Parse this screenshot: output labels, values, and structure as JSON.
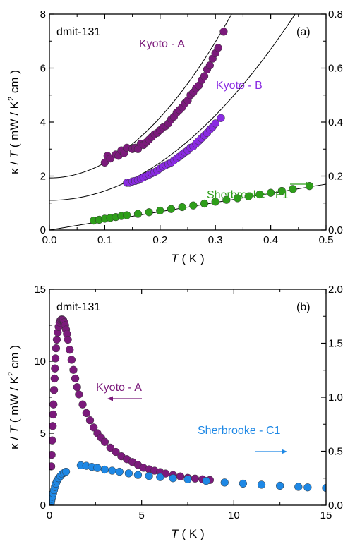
{
  "chart_data": [
    {
      "id": "a",
      "type": "scatter",
      "panel_label": "(a)",
      "sample_label": "dmit-131",
      "xlabel": {
        "var": "T",
        "unit": "( K )"
      },
      "ylabel": {
        "pre": "κ / ",
        "var": "T",
        "unit_pre": " ( mW / K",
        "sup": "2",
        "unit_post": " cm )"
      },
      "xlim": [
        0.0,
        0.5
      ],
      "ylim": [
        0,
        8
      ],
      "y2lim": [
        0.0,
        0.8
      ],
      "xticks": [
        "0.0",
        "0.1",
        "0.2",
        "0.3",
        "0.4",
        "0.5"
      ],
      "yticks": [
        "0",
        "2",
        "4",
        "6",
        "8"
      ],
      "y2ticks": [
        "0.0",
        "0.2",
        "0.4",
        "0.6",
        "0.8"
      ],
      "colors": {
        "kyoto_a": "#7b1a7b",
        "kyoto_b": "#8a2be2",
        "sherbrooke_f1": "#2e9e1a"
      },
      "series": [
        {
          "name": "Kyoto - A",
          "color": "#7b1a7b",
          "axis": "left",
          "points": [
            [
              0.1,
              2.5
            ],
            [
              0.105,
              2.75
            ],
            [
              0.11,
              2.65
            ],
            [
              0.12,
              2.8
            ],
            [
              0.125,
              2.75
            ],
            [
              0.13,
              2.95
            ],
            [
              0.135,
              2.85
            ],
            [
              0.14,
              3.05
            ],
            [
              0.15,
              3.0
            ],
            [
              0.155,
              3.05
            ],
            [
              0.16,
              3.0
            ],
            [
              0.165,
              3.2
            ],
            [
              0.17,
              3.15
            ],
            [
              0.175,
              3.25
            ],
            [
              0.18,
              3.35
            ],
            [
              0.185,
              3.45
            ],
            [
              0.19,
              3.55
            ],
            [
              0.195,
              3.6
            ],
            [
              0.2,
              3.7
            ],
            [
              0.205,
              3.8
            ],
            [
              0.21,
              3.85
            ],
            [
              0.215,
              3.95
            ],
            [
              0.22,
              4.1
            ],
            [
              0.225,
              4.2
            ],
            [
              0.23,
              4.35
            ],
            [
              0.235,
              4.45
            ],
            [
              0.24,
              4.55
            ],
            [
              0.245,
              4.7
            ],
            [
              0.25,
              4.8
            ],
            [
              0.255,
              5.0
            ],
            [
              0.26,
              5.1
            ],
            [
              0.265,
              5.25
            ],
            [
              0.27,
              5.35
            ],
            [
              0.275,
              5.55
            ],
            [
              0.28,
              5.7
            ],
            [
              0.285,
              5.95
            ],
            [
              0.29,
              6.1
            ],
            [
              0.295,
              6.35
            ],
            [
              0.3,
              6.55
            ],
            [
              0.305,
              6.75
            ],
            [
              0.315,
              7.35
            ]
          ],
          "fit": {
            "a": 1.93,
            "b": 0.0,
            "c": 56.0
          }
        },
        {
          "name": "Kyoto - B",
          "color": "#8a2be2",
          "axis": "left",
          "points": [
            [
              0.14,
              1.75
            ],
            [
              0.145,
              1.75
            ],
            [
              0.15,
              1.8
            ],
            [
              0.155,
              1.82
            ],
            [
              0.16,
              1.85
            ],
            [
              0.165,
              1.9
            ],
            [
              0.17,
              1.95
            ],
            [
              0.175,
              2.0
            ],
            [
              0.18,
              2.05
            ],
            [
              0.185,
              2.1
            ],
            [
              0.19,
              2.15
            ],
            [
              0.195,
              2.2
            ],
            [
              0.2,
              2.28
            ],
            [
              0.205,
              2.35
            ],
            [
              0.21,
              2.4
            ],
            [
              0.215,
              2.45
            ],
            [
              0.22,
              2.5
            ],
            [
              0.225,
              2.58
            ],
            [
              0.23,
              2.65
            ],
            [
              0.235,
              2.72
            ],
            [
              0.24,
              2.8
            ],
            [
              0.245,
              2.88
            ],
            [
              0.25,
              2.95
            ],
            [
              0.255,
              3.05
            ],
            [
              0.26,
              3.1
            ],
            [
              0.265,
              3.2
            ],
            [
              0.27,
              3.3
            ],
            [
              0.275,
              3.4
            ],
            [
              0.28,
              3.5
            ],
            [
              0.285,
              3.6
            ],
            [
              0.29,
              3.72
            ],
            [
              0.295,
              3.82
            ],
            [
              0.3,
              3.95
            ],
            [
              0.31,
              4.15
            ]
          ],
          "fit": {
            "a": 1.1,
            "b": 0.0,
            "c": 35.0
          }
        },
        {
          "name": "Sherbrooke - F1",
          "color": "#2e9e1a",
          "axis": "right",
          "points": [
            [
              0.08,
              0.035
            ],
            [
              0.09,
              0.038
            ],
            [
              0.1,
              0.042
            ],
            [
              0.11,
              0.045
            ],
            [
              0.12,
              0.048
            ],
            [
              0.13,
              0.052
            ],
            [
              0.14,
              0.055
            ],
            [
              0.16,
              0.06
            ],
            [
              0.18,
              0.066
            ],
            [
              0.2,
              0.072
            ],
            [
              0.22,
              0.078
            ],
            [
              0.24,
              0.085
            ],
            [
              0.26,
              0.091
            ],
            [
              0.28,
              0.098
            ],
            [
              0.3,
              0.105
            ],
            [
              0.32,
              0.112
            ],
            [
              0.34,
              0.118
            ],
            [
              0.36,
              0.125
            ],
            [
              0.38,
              0.132
            ],
            [
              0.4,
              0.138
            ],
            [
              0.42,
              0.145
            ],
            [
              0.44,
              0.152
            ],
            [
              0.47,
              0.163
            ]
          ],
          "fit": {
            "a": 0.0,
            "b": 0.34,
            "c": 0.0,
            "scale": 0.1
          }
        }
      ],
      "annotations": [
        {
          "text": "Kyoto - A",
          "color": "#7b1a7b"
        },
        {
          "text": "Kyoto - B",
          "color": "#8a2be2"
        },
        {
          "text": "Sherbrooke - F1",
          "color": "#2e9e1a",
          "arrow": "right"
        }
      ]
    },
    {
      "id": "b",
      "type": "scatter",
      "panel_label": "(b)",
      "sample_label": "dmit-131",
      "xlabel": {
        "var": "T",
        "unit": "( K )"
      },
      "ylabel": {
        "pre": "κ / ",
        "var": "T",
        "unit_pre": " ( mW / K",
        "sup": "2",
        "unit_post": " cm )"
      },
      "xlim": [
        0,
        15
      ],
      "ylim": [
        0,
        15
      ],
      "y2lim": [
        0.0,
        2.0
      ],
      "xticks": [
        "0",
        "5",
        "10",
        "15"
      ],
      "yticks": [
        "0",
        "5",
        "10",
        "15"
      ],
      "y2ticks": [
        "0.0",
        "0.5",
        "1.0",
        "1.5",
        "2.0"
      ],
      "colors": {
        "kyoto_a": "#7b1a7b",
        "sherbrooke_c1": "#1e88e5"
      },
      "series": [
        {
          "name": "Kyoto - A",
          "color": "#7b1a7b",
          "axis": "left",
          "points": [
            [
              0.1,
              2.7
            ],
            [
              0.12,
              3.5
            ],
            [
              0.15,
              4.5
            ],
            [
              0.18,
              5.5
            ],
            [
              0.2,
              6.3
            ],
            [
              0.22,
              7.0
            ],
            [
              0.25,
              8.0
            ],
            [
              0.28,
              8.8
            ],
            [
              0.3,
              9.5
            ],
            [
              0.33,
              10.2
            ],
            [
              0.36,
              10.9
            ],
            [
              0.4,
              11.5
            ],
            [
              0.45,
              12.0
            ],
            [
              0.5,
              12.4
            ],
            [
              0.55,
              12.7
            ],
            [
              0.6,
              12.85
            ],
            [
              0.65,
              12.9
            ],
            [
              0.7,
              12.9
            ],
            [
              0.75,
              12.85
            ],
            [
              0.8,
              12.7
            ],
            [
              0.85,
              12.5
            ],
            [
              0.9,
              12.2
            ],
            [
              0.95,
              11.9
            ],
            [
              1.0,
              11.5
            ],
            [
              1.1,
              10.8
            ],
            [
              1.2,
              10.1
            ],
            [
              1.3,
              9.4
            ],
            [
              1.4,
              8.8
            ],
            [
              1.5,
              8.2
            ],
            [
              1.6,
              7.7
            ],
            [
              1.8,
              7.0
            ],
            [
              2.0,
              6.4
            ],
            [
              2.2,
              5.9
            ],
            [
              2.4,
              5.4
            ],
            [
              2.6,
              5.0
            ],
            [
              2.8,
              4.7
            ],
            [
              3.0,
              4.4
            ],
            [
              3.3,
              4.0
            ],
            [
              3.6,
              3.7
            ],
            [
              3.9,
              3.4
            ],
            [
              4.2,
              3.2
            ],
            [
              4.5,
              3.0
            ],
            [
              4.8,
              2.8
            ],
            [
              5.1,
              2.6
            ],
            [
              5.4,
              2.5
            ],
            [
              5.7,
              2.4
            ],
            [
              6.0,
              2.3
            ],
            [
              6.3,
              2.2
            ],
            [
              6.7,
              2.1
            ],
            [
              7.1,
              2.0
            ],
            [
              7.5,
              1.9
            ],
            [
              7.9,
              1.85
            ],
            [
              8.3,
              1.8
            ],
            [
              8.7,
              1.75
            ]
          ]
        },
        {
          "name": "Sherbrooke - C1",
          "color": "#1e88e5",
          "axis": "right",
          "points": [
            [
              0.08,
              0.02
            ],
            [
              0.1,
              0.04
            ],
            [
              0.12,
              0.06
            ],
            [
              0.15,
              0.08
            ],
            [
              0.2,
              0.11
            ],
            [
              0.25,
              0.14
            ],
            [
              0.3,
              0.17
            ],
            [
              0.35,
              0.2
            ],
            [
              0.4,
              0.22
            ],
            [
              0.5,
              0.25
            ],
            [
              0.6,
              0.27
            ],
            [
              0.7,
              0.29
            ],
            [
              0.8,
              0.3
            ],
            [
              0.9,
              0.31
            ],
            [
              1.7,
              0.37
            ],
            [
              2.0,
              0.365
            ],
            [
              2.3,
              0.355
            ],
            [
              2.6,
              0.345
            ],
            [
              3.0,
              0.33
            ],
            [
              3.4,
              0.32
            ],
            [
              3.8,
              0.31
            ],
            [
              4.3,
              0.295
            ],
            [
              4.8,
              0.28
            ],
            [
              5.4,
              0.27
            ],
            [
              6.0,
              0.26
            ],
            [
              6.7,
              0.25
            ],
            [
              7.5,
              0.24
            ],
            [
              8.5,
              0.225
            ],
            [
              9.5,
              0.21
            ],
            [
              10.5,
              0.2
            ],
            [
              11.5,
              0.19
            ],
            [
              12.5,
              0.18
            ],
            [
              13.5,
              0.17
            ],
            [
              14.0,
              0.165
            ],
            [
              15.0,
              0.16
            ]
          ]
        }
      ],
      "annotations": [
        {
          "text": "Kyoto - A",
          "color": "#7b1a7b",
          "arrow": "left"
        },
        {
          "text": "Sherbrooke - C1",
          "color": "#1e88e5",
          "arrow": "right"
        }
      ]
    }
  ]
}
